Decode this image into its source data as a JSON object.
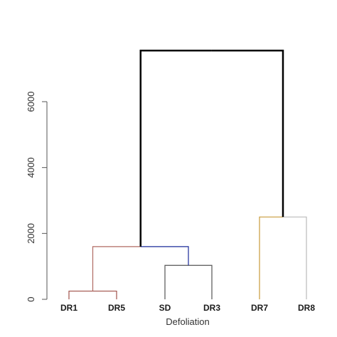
{
  "chart_data": {
    "type": "dendrogram",
    "xlabel": "Defoliation",
    "ylabel": "",
    "ylim": [
      0,
      7200
    ],
    "yticks": [
      0,
      2000,
      4000,
      6000
    ],
    "leaves": [
      "DR1",
      "DR5",
      "SD",
      "DR3",
      "DR7",
      "DR8"
    ],
    "merges": [
      {
        "id": "m1",
        "left": "DR1",
        "right": "DR5",
        "height": 250,
        "color": "#a0524a"
      },
      {
        "id": "m2",
        "left": "SD",
        "right": "DR3",
        "height": 1030,
        "color": "#555555"
      },
      {
        "id": "m3",
        "left": "m1",
        "right": "m2",
        "height": 1600,
        "color": "#b06a62",
        "right_color": "#1a2a9a"
      },
      {
        "id": "m4",
        "left": "DR7",
        "right": "DR8",
        "height": 2500,
        "color": "#c79a3a",
        "right_color": "#bbbbbb"
      },
      {
        "id": "m5",
        "left": "m3",
        "right": "m4",
        "height": 7550,
        "color": "#000000"
      }
    ]
  }
}
